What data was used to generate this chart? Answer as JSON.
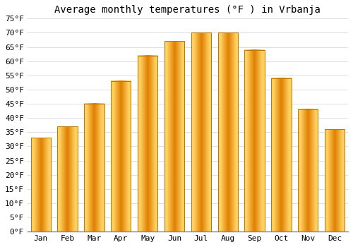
{
  "title": "Average monthly temperatures (°F ) in Vrbanja",
  "months": [
    "Jan",
    "Feb",
    "Mar",
    "Apr",
    "May",
    "Jun",
    "Jul",
    "Aug",
    "Sep",
    "Oct",
    "Nov",
    "Dec"
  ],
  "values": [
    33,
    37,
    45,
    53,
    62,
    67,
    70,
    70,
    64,
    54,
    43,
    36
  ],
  "bar_color_face": "#FFA500",
  "bar_color_light": "#FFD060",
  "bar_color_edge": "#C87800",
  "background_color": "#ffffff",
  "grid_color": "#dddddd",
  "ylim": [
    0,
    75
  ],
  "yticks": [
    0,
    5,
    10,
    15,
    20,
    25,
    30,
    35,
    40,
    45,
    50,
    55,
    60,
    65,
    70,
    75
  ],
  "title_fontsize": 10,
  "tick_fontsize": 8,
  "tick_font_family": "monospace",
  "bar_width": 0.75
}
